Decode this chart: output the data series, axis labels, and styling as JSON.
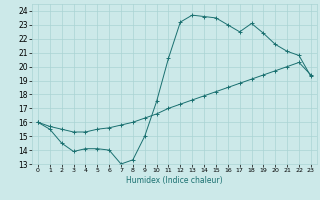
{
  "xlabel": "Humidex (Indice chaleur)",
  "bg_color": "#cce9e9",
  "grid_color": "#aad4d4",
  "line_color": "#1a7070",
  "xlim": [
    -0.5,
    23.5
  ],
  "ylim": [
    13,
    24.5
  ],
  "xticks": [
    0,
    1,
    2,
    3,
    4,
    5,
    6,
    7,
    8,
    9,
    10,
    11,
    12,
    13,
    14,
    15,
    16,
    17,
    18,
    19,
    20,
    21,
    22,
    23
  ],
  "yticks": [
    13,
    14,
    15,
    16,
    17,
    18,
    19,
    20,
    21,
    22,
    23,
    24
  ],
  "line1_x": [
    0,
    1,
    2,
    3,
    4,
    5,
    6,
    7,
    8,
    9,
    10,
    11,
    12,
    13,
    14,
    15,
    16,
    17,
    18,
    19,
    20,
    21,
    22,
    23
  ],
  "line1_y": [
    16.0,
    15.5,
    14.5,
    13.9,
    14.1,
    14.1,
    14.0,
    13.0,
    13.3,
    15.0,
    17.5,
    20.6,
    23.2,
    23.7,
    23.6,
    23.5,
    23.0,
    22.5,
    23.1,
    22.4,
    21.6,
    21.1,
    20.8,
    19.3
  ],
  "line2_x": [
    0,
    1,
    2,
    3,
    4,
    5,
    6,
    7,
    8,
    9,
    10,
    11,
    12,
    13,
    14,
    15,
    16,
    17,
    18,
    19,
    20,
    21,
    22,
    23
  ],
  "line2_y": [
    16.0,
    15.7,
    15.5,
    15.3,
    15.3,
    15.5,
    15.6,
    15.8,
    16.0,
    16.3,
    16.6,
    17.0,
    17.3,
    17.6,
    17.9,
    18.2,
    18.5,
    18.8,
    19.1,
    19.4,
    19.7,
    20.0,
    20.3,
    19.4
  ],
  "marker": "+",
  "marker_size": 2.5,
  "lw": 0.7
}
